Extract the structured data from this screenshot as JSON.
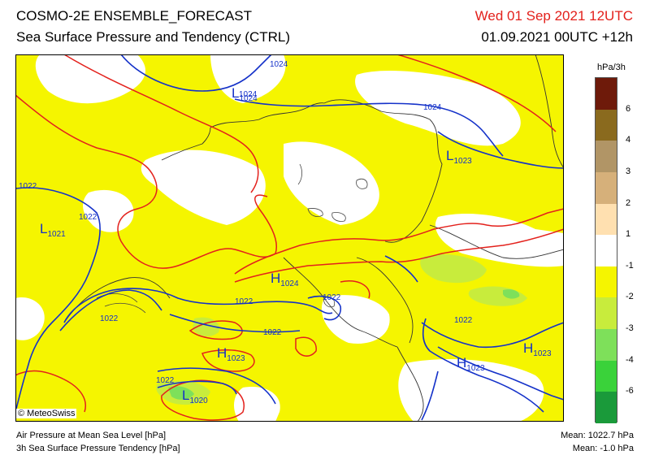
{
  "header": {
    "title_line1": "COSMO-2E ENSEMBLE_FORECAST",
    "title_line2": "Sea Surface Pressure and Tendency (CTRL)",
    "valid_time": "Wed 01 Sep 2021 12UTC",
    "run_info": "01.09.2021 00UTC +12h"
  },
  "legend": {
    "unit": "hPa/3h",
    "ticks": [
      "6",
      "4",
      "3",
      "2",
      "1",
      "-1",
      "-2",
      "-3",
      "-4",
      "-6"
    ],
    "colors": [
      "#6e1a0a",
      "#8a6a1e",
      "#b19566",
      "#d6b07a",
      "#ffe0b0",
      "#ffffff",
      "#f5f500",
      "#c8ec3c",
      "#7ee05a",
      "#3ad23a",
      "#1a9a3a"
    ]
  },
  "map": {
    "isobar_color": "#1431c9",
    "tendency_contour_color": "#e3211c",
    "isobar_labels": [
      "1024",
      "1024",
      "1024",
      "1022",
      "1022",
      "1022",
      "1022",
      "1022",
      "1022",
      "1022",
      "1022"
    ],
    "pressure_centers": [
      {
        "type": "L",
        "value": "1024"
      },
      {
        "type": "L",
        "value": "1023"
      },
      {
        "type": "L",
        "value": "1021"
      },
      {
        "type": "H",
        "value": "1024"
      },
      {
        "type": "H",
        "value": "1023"
      },
      {
        "type": "H",
        "value": "1023"
      },
      {
        "type": "H",
        "value": "1023"
      },
      {
        "type": "L",
        "value": "1020"
      }
    ],
    "credit": "© MeteoSwiss"
  },
  "footer": {
    "line1": "Air Pressure at Mean Sea Level [hPa]",
    "line2": "3h Sea Surface Pressure Tendency [hPa]",
    "mean_pressure": "Mean: 1022.7 hPa",
    "mean_tendency": "Mean:  -1.0 hPa"
  }
}
